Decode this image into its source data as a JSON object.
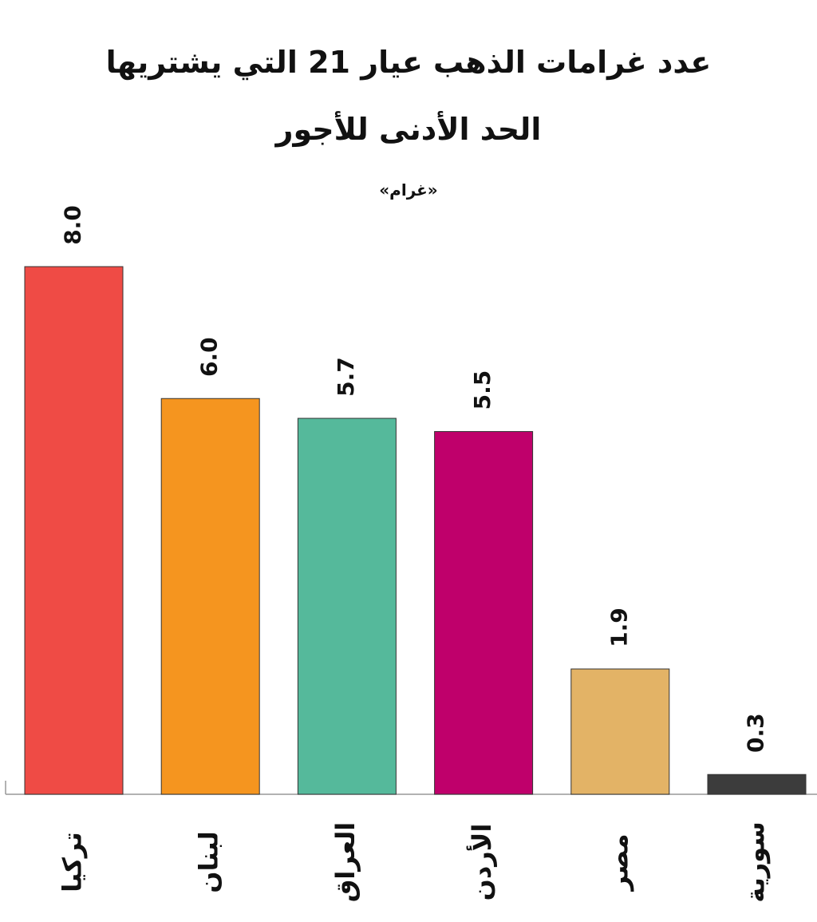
{
  "chart_data": {
    "type": "bar",
    "title": "عدد غرامات الذهب عيار 21 التي يشتريها الحد الأدنى للأجور",
    "subtitle": "«غرام»",
    "categories": [
      "تركيا",
      "لبنان",
      "العراق",
      "الأردن",
      "مصر",
      "سورية"
    ],
    "values": [
      8.0,
      6.0,
      5.7,
      5.5,
      1.9,
      0.3
    ],
    "value_labels": [
      "8.0",
      "6.0",
      "5.7",
      "5.5",
      "1.9",
      "0.3"
    ],
    "colors": [
      "#ef4b45",
      "#f5951f",
      "#55b99b",
      "#bf006b",
      "#e3b366",
      "#3c3c3c"
    ]
  }
}
